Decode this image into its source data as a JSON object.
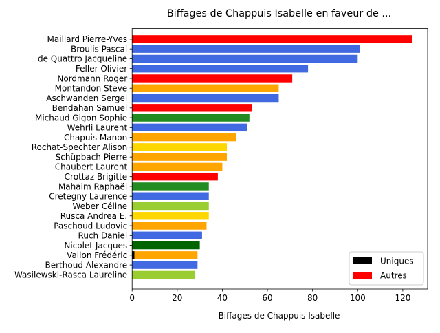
{
  "chart_data": {
    "type": "bar",
    "orientation": "horizontal",
    "title": "Biffages de Chappuis Isabelle en faveur de ...",
    "xlabel": "Biffages de Chappuis Isabelle",
    "ylabel": "",
    "xlim": [
      0,
      131
    ],
    "xticks": [
      0,
      20,
      40,
      60,
      80,
      100,
      120
    ],
    "grid": false,
    "legend": {
      "position": "bottom-right",
      "entries": [
        {
          "label": "Uniques",
          "color": "#000000"
        },
        {
          "label": "Autres",
          "color": "#ff0000"
        }
      ]
    },
    "bars": [
      {
        "name": "Maillard Pierre-Yves",
        "value": 124,
        "unique": 0,
        "color": "#ff0000"
      },
      {
        "name": "Broulis Pascal",
        "value": 101,
        "unique": 0,
        "color": "#4169e1"
      },
      {
        "name": "de Quattro Jacqueline",
        "value": 100,
        "unique": 0,
        "color": "#4169e1"
      },
      {
        "name": "Feller Olivier",
        "value": 78,
        "unique": 0,
        "color": "#4169e1"
      },
      {
        "name": "Nordmann Roger",
        "value": 71,
        "unique": 0,
        "color": "#ff0000"
      },
      {
        "name": "Montandon Steve",
        "value": 65,
        "unique": 0,
        "color": "#ffa500"
      },
      {
        "name": "Aschwanden Sergei",
        "value": 65,
        "unique": 0,
        "color": "#4169e1"
      },
      {
        "name": "Bendahan Samuel",
        "value": 53,
        "unique": 0,
        "color": "#ff0000"
      },
      {
        "name": "Michaud Gigon Sophie",
        "value": 52,
        "unique": 0,
        "color": "#228b22"
      },
      {
        "name": "Wehrli Laurent",
        "value": 51,
        "unique": 0,
        "color": "#4169e1"
      },
      {
        "name": "Chapuis Manon",
        "value": 46,
        "unique": 0,
        "color": "#ffa500"
      },
      {
        "name": "Rochat-Spechter Alison",
        "value": 42,
        "unique": 0,
        "color": "#ffd700"
      },
      {
        "name": "Schüpbach Pierre",
        "value": 42,
        "unique": 0,
        "color": "#ffa500"
      },
      {
        "name": "Chaubert Laurent",
        "value": 40,
        "unique": 0,
        "color": "#ffa500"
      },
      {
        "name": "Crottaz Brigitte",
        "value": 38,
        "unique": 0,
        "color": "#ff0000"
      },
      {
        "name": "Mahaim Raphaël",
        "value": 34,
        "unique": 0,
        "color": "#228b22"
      },
      {
        "name": "Cretegny Laurence",
        "value": 34,
        "unique": 0,
        "color": "#4169e1"
      },
      {
        "name": "Weber Céline",
        "value": 34,
        "unique": 0,
        "color": "#9acd32"
      },
      {
        "name": "Rusca Andrea E.",
        "value": 34,
        "unique": 0,
        "color": "#ffd700"
      },
      {
        "name": "Paschoud Ludovic",
        "value": 33,
        "unique": 0,
        "color": "#ffa500"
      },
      {
        "name": "Ruch Daniel",
        "value": 31,
        "unique": 0,
        "color": "#4169e1"
      },
      {
        "name": "Nicolet Jacques",
        "value": 30,
        "unique": 0,
        "color": "#006400"
      },
      {
        "name": "Vallon Frédéric",
        "value": 29,
        "unique": 1,
        "color": "#ffa500"
      },
      {
        "name": "Berthoud Alexandre",
        "value": 29,
        "unique": 0,
        "color": "#4169e1"
      },
      {
        "name": "Wasilewski-Rasca Laureline",
        "value": 28,
        "unique": 0,
        "color": "#9acd32"
      }
    ]
  }
}
